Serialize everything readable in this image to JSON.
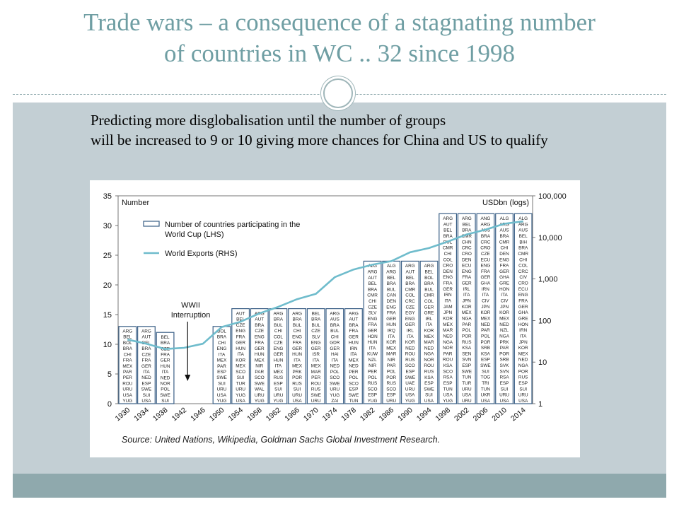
{
  "slide": {
    "title_line1": "Trade wars – a consequence of a stagnating number",
    "title_line2": "of countries in WC .. 32 since 1998",
    "subtitle_line1": "Predicting more disglobalisation until the number of groups",
    "subtitle_line2": "will be increased to 9 or 10 giving more chances for China and US to qualify"
  },
  "colors": {
    "bar_outline": "#3a5f86",
    "line": "#6fbccc",
    "axis": "#333333",
    "title": "#6f9ea3"
  },
  "chart_data": {
    "type": "bar",
    "panel_label_left": "Number",
    "panel_label_right": "USDbn (logs)",
    "legend": [
      "Number of countries participating in the World Cup (LHS)",
      "World Exports (RHS)"
    ],
    "annotation": [
      "WWII",
      "Interruption"
    ],
    "source": "Source: United Nations, Wikipedia, Goldman Sachs Global Investment Research.",
    "categories": [
      "1930",
      "1934",
      "1938",
      "1942",
      "1946",
      "1950",
      "1954",
      "1958",
      "1962",
      "1966",
      "1970",
      "1974",
      "1978",
      "1982",
      "1986",
      "1990",
      "1994",
      "1998",
      "2002",
      "2006",
      "2010",
      "2014"
    ],
    "ylim_left": [
      0,
      35
    ],
    "yticks_left": [
      "0",
      "5",
      "10",
      "15",
      "20",
      "25",
      "30",
      "35"
    ],
    "yticks_right": [
      "1",
      "10",
      "100",
      "1,000",
      "10,000",
      "100,000"
    ],
    "series": [
      {
        "name": "Number of countries participating in the World Cup (LHS)",
        "axis": "left",
        "values": [
          13,
          13,
          12,
          null,
          null,
          13,
          16,
          16,
          16,
          16,
          16,
          16,
          16,
          24,
          24,
          24,
          24,
          32,
          32,
          32,
          32,
          32
        ]
      },
      {
        "name": "World Exports (RHS)",
        "axis": "right",
        "scale": "log10",
        "values": [
          10.8,
          10.1,
          9.2,
          9.4,
          10.1,
          12.9,
          13.8,
          15.2,
          16.3,
          17.6,
          18.5,
          21.3,
          22.6,
          23.4,
          24.0,
          25.5,
          26.2,
          27.3,
          28.5,
          29.3,
          30.3,
          30.7
        ],
        "values_lhs_equivalent": true
      }
    ],
    "bar_labels": [
      [
        "ARG",
        "BEL",
        "BOL",
        "BRA",
        "CHI",
        "FRA",
        "MEX",
        "PAR",
        "PER",
        "ROU",
        "URU",
        "USA",
        "YUG"
      ],
      [
        "ARG",
        "AUT",
        "BEL",
        "BRA",
        "CZE",
        "FRA",
        "GER",
        "ITA",
        "NED",
        "ESP",
        "SWE",
        "SUI",
        "USA"
      ],
      [
        "BEL",
        "BRA",
        "CZE",
        "FRA",
        "GER",
        "HUN",
        "ITA",
        "NED",
        "NOR",
        "POL",
        "SWE",
        "SUI"
      ],
      [],
      [],
      [
        "BOL",
        "BRA",
        "CHI",
        "ENG",
        "ITA",
        "MEX",
        "PAR",
        "ESP",
        "SWE",
        "SUI",
        "URU",
        "USA",
        "YUG"
      ],
      [
        "AUT",
        "BEL",
        "CZE",
        "ENG",
        "FRA",
        "GER",
        "HUN",
        "ITA",
        "KOR",
        "MEX",
        "SCO",
        "SUI",
        "TUR",
        "URU",
        "YUG",
        "USA"
      ],
      [
        "ARG",
        "AUT",
        "BRA",
        "CZE",
        "ENG",
        "FRA",
        "GER",
        "HUN",
        "MEX",
        "NIR",
        "PAR",
        "SCO",
        "SWE",
        "WAL",
        "URU",
        "YUG"
      ],
      [
        "ARG",
        "BRA",
        "BUL",
        "CHI",
        "COL",
        "CZE",
        "ENG",
        "GER",
        "HUN",
        "ITA",
        "MEX",
        "RUS",
        "ESP",
        "SUI",
        "URU",
        "YUG"
      ],
      [
        "ARG",
        "BRA",
        "BUL",
        "CHI",
        "ENG",
        "FRA",
        "GER",
        "HUN",
        "ITA",
        "MEX",
        "PRK",
        "POR",
        "RUS",
        "SUI",
        "URU",
        "USA"
      ],
      [
        "BEL",
        "BRA",
        "BUL",
        "CZE",
        "SLV",
        "ENG",
        "GER",
        "ISR",
        "ITA",
        "MEX",
        "MAR",
        "PER",
        "ROU",
        "RUS",
        "SWE",
        "URU"
      ],
      [
        "ARG",
        "AUS",
        "BRA",
        "BUL",
        "CHI",
        "GDR",
        "GER",
        "HAI",
        "ITA",
        "NED",
        "POL",
        "SCO",
        "SWE",
        "URU",
        "YUG",
        "ZAI"
      ],
      [
        "ARG",
        "AUT",
        "BRA",
        "FRA",
        "GER",
        "HUN",
        "IRN",
        "ITA",
        "MEX",
        "NED",
        "PER",
        "POL",
        "SCO",
        "ESP",
        "SWE",
        "TUN"
      ],
      [
        "ALG",
        "ARG",
        "AUT",
        "BEL",
        "BRA",
        "CMR",
        "CHI",
        "CZE",
        "SLV",
        "ENG",
        "FRA",
        "GER",
        "HON",
        "HUN",
        "ITA",
        "KUW",
        "NZL",
        "NIR",
        "PER",
        "POL",
        "RUS",
        "SCO",
        "ESP",
        "YUG"
      ],
      [
        "ALG",
        "ARG",
        "BEL",
        "BRA",
        "BUL",
        "CAN",
        "DEN",
        "ENG",
        "FRA",
        "GER",
        "HUN",
        "IRQ",
        "ITA",
        "KOR",
        "MEX",
        "MAR",
        "NIR",
        "PAR",
        "POL",
        "POR",
        "RUS",
        "SCO",
        "ESP",
        "URU"
      ],
      [
        "ARG",
        "AUT",
        "BEL",
        "BRA",
        "CMR",
        "COL",
        "CRC",
        "CZE",
        "EGY",
        "ENG",
        "GER",
        "IRL",
        "ITA",
        "KOR",
        "NED",
        "ROU",
        "RUS",
        "SCO",
        "ESP",
        "SWE",
        "UAE",
        "URU",
        "USA",
        "YUG"
      ],
      [
        "ARG",
        "BEL",
        "BOL",
        "BRA",
        "BUL",
        "CMR",
        "COL",
        "GER",
        "GRE",
        "IRL",
        "ITA",
        "KOR",
        "MEX",
        "MAR",
        "NED",
        "NGA",
        "NOR",
        "ROU",
        "RUS",
        "KSA",
        "ESP",
        "SWE",
        "SUI",
        "USA"
      ],
      [
        "ARG",
        "AUT",
        "BEL",
        "BRA",
        "BUL",
        "CMR",
        "CHI",
        "COL",
        "CRO",
        "DEN",
        "ENG",
        "FRA",
        "GER",
        "IRN",
        "ITA",
        "JAM",
        "JPN",
        "KOR",
        "MEX",
        "MAR",
        "NED",
        "NGA",
        "NOR",
        "PAR",
        "ROU",
        "KSA",
        "SCO",
        "RSA",
        "ESP",
        "TUN",
        "USA",
        "YUG"
      ],
      [
        "ARG",
        "BEL",
        "BRA",
        "CMR",
        "CHN",
        "CRC",
        "CRO",
        "DEN",
        "ECU",
        "ENG",
        "FRA",
        "GER",
        "IRL",
        "ITA",
        "JPN",
        "KOR",
        "MEX",
        "NGA",
        "PAR",
        "POL",
        "POR",
        "RUS",
        "KSA",
        "SEN",
        "SVN",
        "ESP",
        "SWE",
        "TUN",
        "TUR",
        "URU",
        "USA",
        "URU"
      ],
      [
        "ANG",
        "ARG",
        "AUS",
        "BRA",
        "CRC",
        "CRO",
        "CZE",
        "ECU",
        "ENG",
        "FRA",
        "GER",
        "GHA",
        "IRN",
        "ITA",
        "CIV",
        "JPN",
        "KOR",
        "MEX",
        "NED",
        "PAR",
        "POL",
        "POR",
        "SRB",
        "KSA",
        "ESP",
        "SWE",
        "SUI",
        "TOG",
        "TRI",
        "TUN",
        "UKR",
        "USA"
      ],
      [
        "ALG",
        "ARG",
        "AUS",
        "BRA",
        "CMR",
        "CHI",
        "DEN",
        "ENG",
        "FRA",
        "GER",
        "GHA",
        "GRE",
        "HON",
        "ITA",
        "CIV",
        "JPN",
        "KOR",
        "MEX",
        "NED",
        "NZL",
        "NGA",
        "PRK",
        "PAR",
        "POR",
        "SRB",
        "SVK",
        "SVN",
        "RSA",
        "ESP",
        "SUI",
        "URU",
        "USA"
      ],
      [
        "ALG",
        "ARG",
        "AUS",
        "BEL",
        "BIH",
        "BRA",
        "CMR",
        "CHI",
        "COL",
        "CRC",
        "CIV",
        "CRO",
        "ECU",
        "ENG",
        "FRA",
        "GER",
        "GHA",
        "GRE",
        "HON",
        "IRN",
        "ITA",
        "JPN",
        "KOR",
        "MEX",
        "NED",
        "NGA",
        "POR",
        "RUS",
        "ESP",
        "SUI",
        "URU",
        "USA"
      ]
    ]
  }
}
